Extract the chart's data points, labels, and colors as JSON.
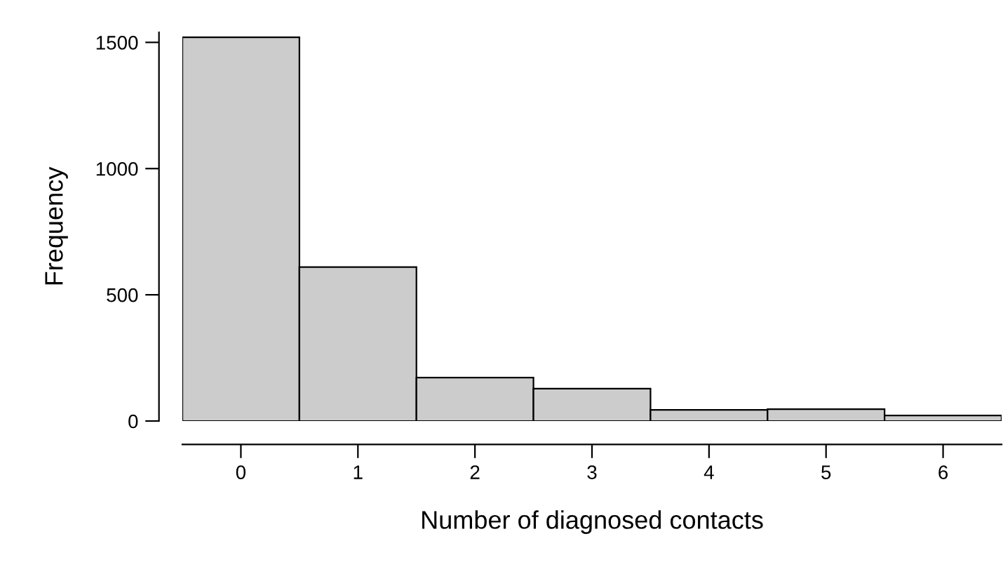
{
  "chart_data": {
    "type": "histogram",
    "xlabel": "Number of diagnosed contacts",
    "ylabel": "Frequency",
    "bins": [
      -0.5,
      0.5,
      1.5,
      2.5,
      3.5,
      4.5,
      5.5,
      6.5
    ],
    "values": [
      1520,
      610,
      172,
      128,
      44,
      47,
      22
    ],
    "color": "#cccccc",
    "xlim": [
      -0.5,
      6.5
    ],
    "ylim": [
      0,
      1540
    ],
    "xticks": [
      0,
      1,
      2,
      3,
      4,
      5,
      6
    ],
    "yticks": [
      0,
      500,
      1000,
      1500
    ],
    "grid": false,
    "legend": false
  }
}
